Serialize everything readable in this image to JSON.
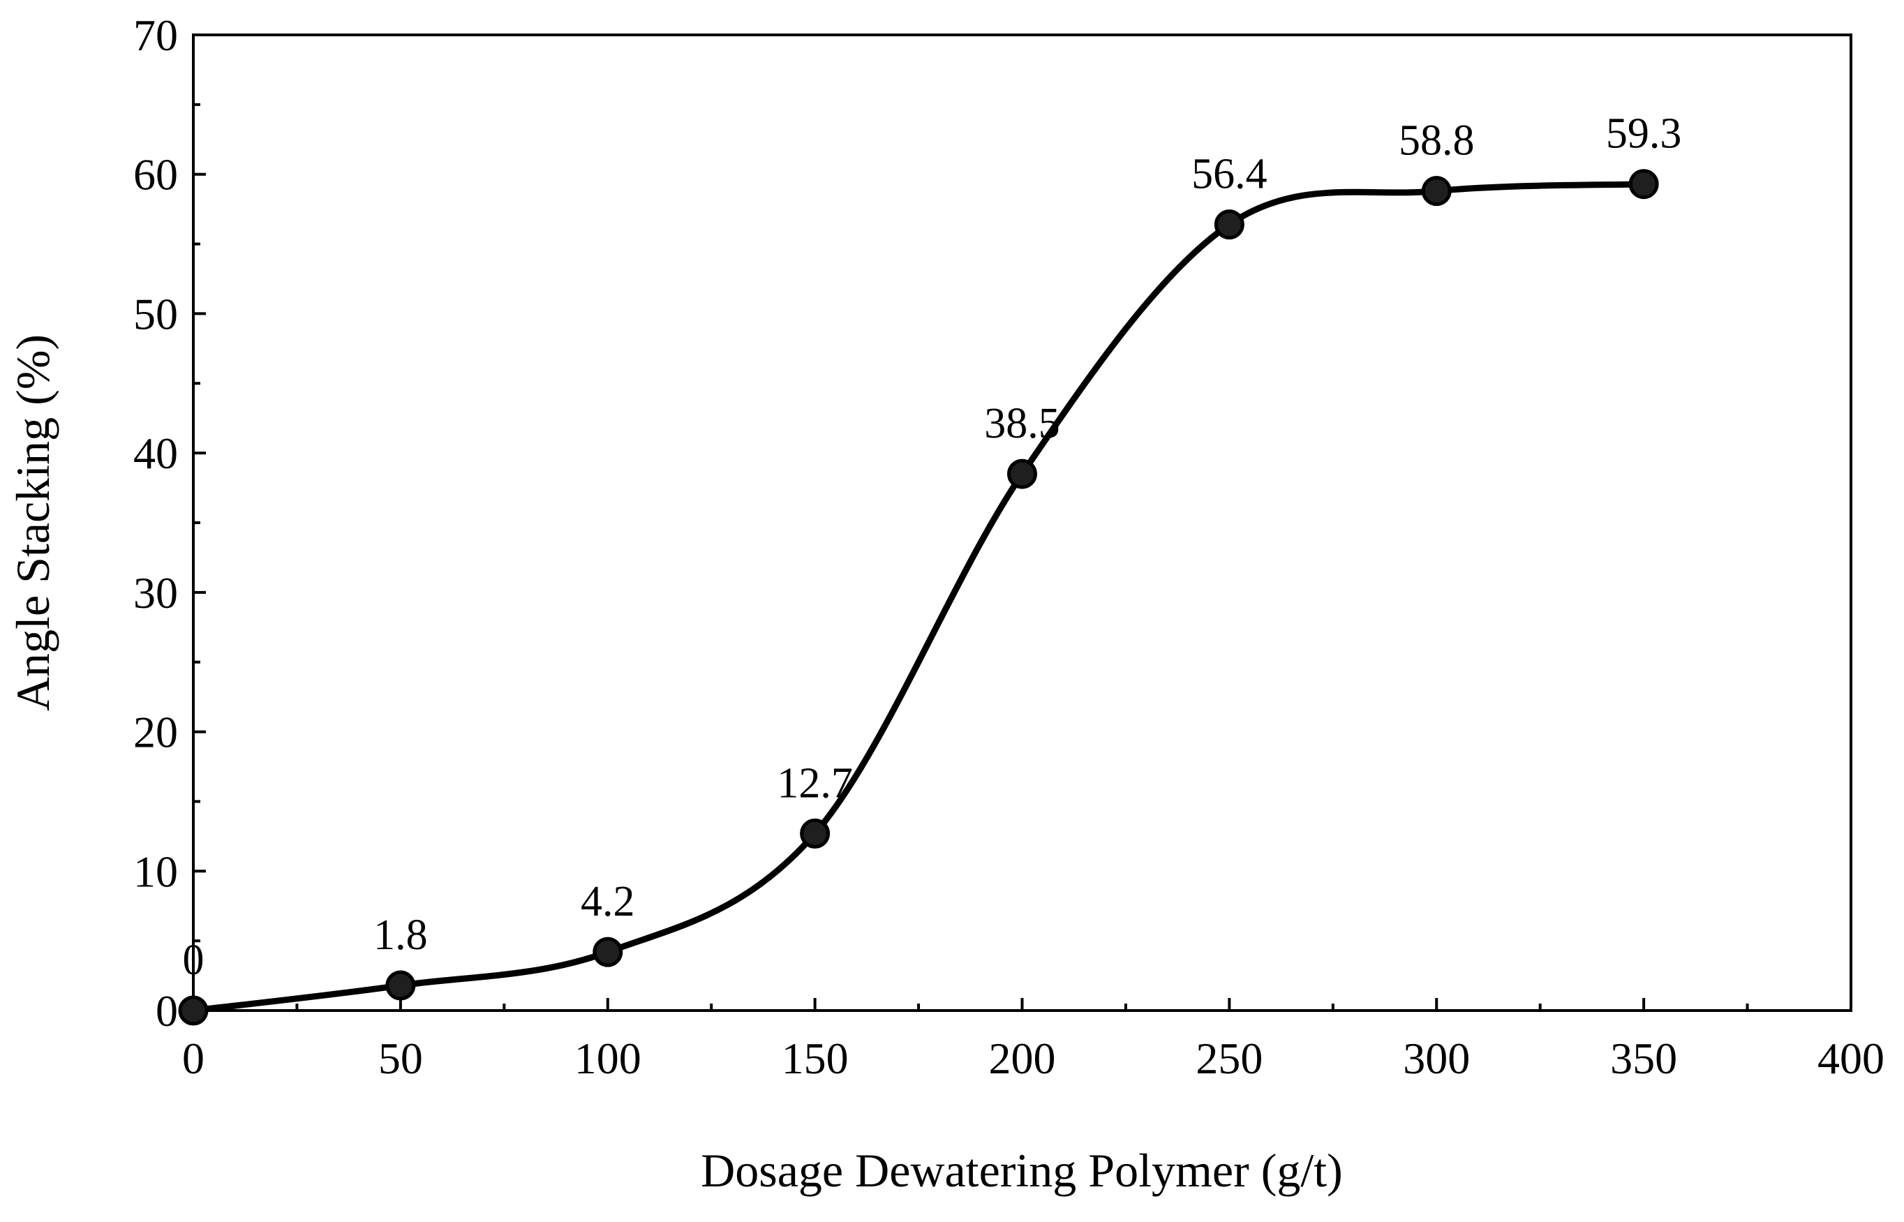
{
  "chart_data": {
    "type": "line",
    "title": "",
    "xlabel": "Dosage Dewatering  Polymer  (g/t)",
    "ylabel": "Angle Stacking (%)",
    "xlim": [
      0,
      400
    ],
    "ylim": [
      0,
      70
    ],
    "x_ticks": [
      0,
      50,
      100,
      150,
      200,
      250,
      300,
      350,
      400
    ],
    "y_ticks": [
      0,
      10,
      20,
      30,
      40,
      50,
      60,
      70
    ],
    "x_tick_labels": [
      "0",
      "50",
      "100",
      "150",
      "200",
      "250",
      "300",
      "350",
      "400"
    ],
    "y_tick_labels": [
      "0",
      "10",
      "20",
      "30",
      "40",
      "50",
      "60",
      "70"
    ],
    "grid": false,
    "legend": "none",
    "smooth": true,
    "series": [
      {
        "name": "Angle Stacking",
        "x": [
          0,
          50,
          100,
          150,
          200,
          250,
          300,
          350
        ],
        "y": [
          0,
          1.8,
          4.2,
          12.7,
          38.5,
          56.4,
          58.8,
          59.3
        ],
        "labels": [
          "0",
          "1.8",
          "4.2",
          "12.7",
          "38.5",
          "56.4",
          "58.8",
          "59.3"
        ]
      }
    ],
    "colors": {
      "line": "#000000",
      "marker_fill": "#1f1f1f",
      "marker_stroke": "#000000"
    }
  }
}
